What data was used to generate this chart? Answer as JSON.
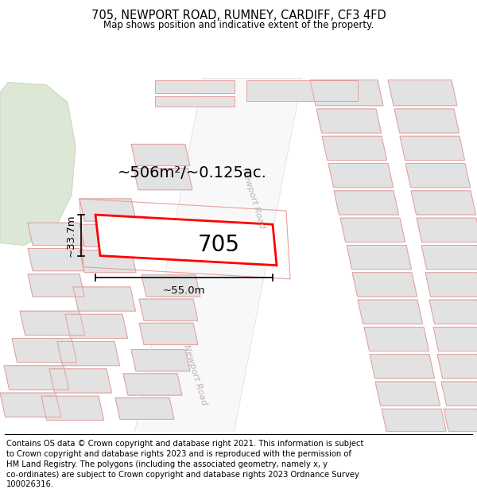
{
  "title": "705, NEWPORT ROAD, RUMNEY, CARDIFF, CF3 4FD",
  "subtitle": "Map shows position and indicative extent of the property.",
  "footer_lines": [
    "Contains OS data © Crown copyright and database right 2021. This information is subject",
    "to Crown copyright and database rights 2023 and is reproduced with the permission of",
    "HM Land Registry. The polygons (including the associated geometry, namely x, y",
    "co-ordinates) are subject to Crown copyright and database rights 2023 Ordnance Survey",
    "100026316."
  ],
  "map_bg": "#f2f2f2",
  "green_color": "#dce8d5",
  "green_edge": "#c8d8c0",
  "bld_fill": "#e2e2e2",
  "bld_edge": "#cccccc",
  "pink_edge": "#e8a0a0",
  "road_fill": "#f8f8f8",
  "road_text": "#c0b0b0",
  "highlight_color": "#ff0000",
  "dim_line_color": "#000000",
  "area_label": "~506m²/~0.125ac.",
  "width_label": "~55.0m",
  "height_label": "~33.7m",
  "plot_number": "705",
  "title_fontsize": 10.5,
  "subtitle_fontsize": 8.5,
  "footer_fontsize": 7.2,
  "area_label_fontsize": 14,
  "dim_fontsize": 9.5,
  "plot_num_fontsize": 20,
  "road_label_fontsize": 8
}
